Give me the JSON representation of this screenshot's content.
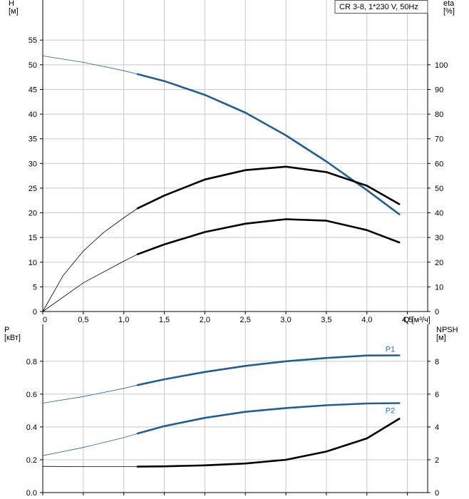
{
  "legend": {
    "text": "CR 3-8, 1*230 V, 50Hz"
  },
  "colors": {
    "blue": "#1f5e96",
    "black": "#000000",
    "grid": "#c8c8c8",
    "blue_label": "#2b6ca8"
  },
  "chart_data": [
    {
      "type": "line",
      "panel": "top",
      "ylabel_left": "H\n[м]",
      "ylabel_right": "eta\n[%]",
      "xlabel": "Q [м³/ч]",
      "xlim": [
        0,
        4.75
      ],
      "ylim_left": [
        0,
        60
      ],
      "ylim_right": [
        0,
        120
      ],
      "x_ticks": [
        "0",
        "0,5",
        "1,0",
        "1,5",
        "2,0",
        "2,5",
        "3,0",
        "3,5",
        "4,0",
        "4,5"
      ],
      "y_left_ticks": [
        "0",
        "5",
        "10",
        "15",
        "20",
        "25",
        "30",
        "35",
        "40",
        "45",
        "50",
        "55"
      ],
      "y_right_ticks": [
        "0",
        "10",
        "20",
        "30",
        "40",
        "50",
        "60",
        "70",
        "80",
        "90",
        "100"
      ],
      "grid": true,
      "legend_placement": "top-right",
      "series": [
        {
          "axis": "left",
          "color": "#1f5e96",
          "x": [
            0,
            0.5,
            1.0,
            1.17,
            1.5,
            2.0,
            2.5,
            3.0,
            3.5,
            4.0,
            4.4
          ],
          "y": [
            51.8,
            50.5,
            48.8,
            48.1,
            46.7,
            43.9,
            40.3,
            35.7,
            30.4,
            24.6,
            19.7
          ],
          "x_bold_from": 1.17
        },
        {
          "axis": "right",
          "color": "#000000",
          "x": [
            0,
            0.25,
            0.5,
            0.75,
            1.0,
            1.17,
            1.5,
            2.0,
            2.5,
            3.0,
            3.5,
            4.0,
            4.4
          ],
          "y": [
            0,
            14.5,
            24.5,
            32,
            38,
            41.8,
            47,
            53.5,
            57.3,
            58.7,
            56.5,
            51,
            43.5
          ],
          "x_bold_from": 1.17
        },
        {
          "axis": "left",
          "color": "#000000",
          "x": [
            0,
            0.5,
            1.0,
            1.17,
            1.5,
            2.0,
            2.5,
            3.0,
            3.5,
            4.0,
            4.4
          ],
          "y": [
            0,
            5.8,
            10.2,
            11.6,
            13.6,
            16.1,
            17.8,
            18.7,
            18.4,
            16.5,
            14
          ],
          "x_bold_from": 1.17
        }
      ]
    },
    {
      "type": "line",
      "panel": "bottom",
      "ylabel_left": "P\n[кВт]",
      "ylabel_right": "NPSH\n[м]",
      "xlim": [
        0,
        4.75
      ],
      "ylim_left": [
        0,
        1.0
      ],
      "ylim_right": [
        0,
        10
      ],
      "y_left_ticks": [
        "0.0",
        "0.2",
        "0.4",
        "0.6",
        "0.8"
      ],
      "y_right_ticks": [
        "0",
        "2",
        "4",
        "6",
        "8"
      ],
      "grid": true,
      "series": [
        {
          "name": "P1",
          "axis": "left",
          "color": "#1f5e96",
          "x": [
            0,
            0.5,
            1.0,
            1.17,
            1.5,
            2.0,
            2.5,
            3.0,
            3.5,
            4.0,
            4.4
          ],
          "y": [
            0.545,
            0.585,
            0.635,
            0.655,
            0.69,
            0.735,
            0.772,
            0.8,
            0.82,
            0.835,
            0.836
          ],
          "x_bold_from": 1.17
        },
        {
          "name": "P2",
          "axis": "left",
          "color": "#1f5e96",
          "x": [
            0,
            0.5,
            1.0,
            1.17,
            1.5,
            2.0,
            2.5,
            3.0,
            3.5,
            4.0,
            4.4
          ],
          "y": [
            0.225,
            0.275,
            0.335,
            0.36,
            0.405,
            0.455,
            0.492,
            0.515,
            0.532,
            0.543,
            0.545
          ],
          "x_bold_from": 1.17
        },
        {
          "axis": "right",
          "color": "#000000",
          "x": [
            0,
            0.5,
            1.0,
            1.17,
            1.5,
            2.0,
            2.5,
            3.0,
            3.5,
            4.0,
            4.4
          ],
          "y": [
            1.6,
            1.58,
            1.58,
            1.58,
            1.6,
            1.66,
            1.77,
            2.0,
            2.5,
            3.3,
            4.5
          ],
          "x_bold_from": 1.17
        }
      ]
    }
  ]
}
